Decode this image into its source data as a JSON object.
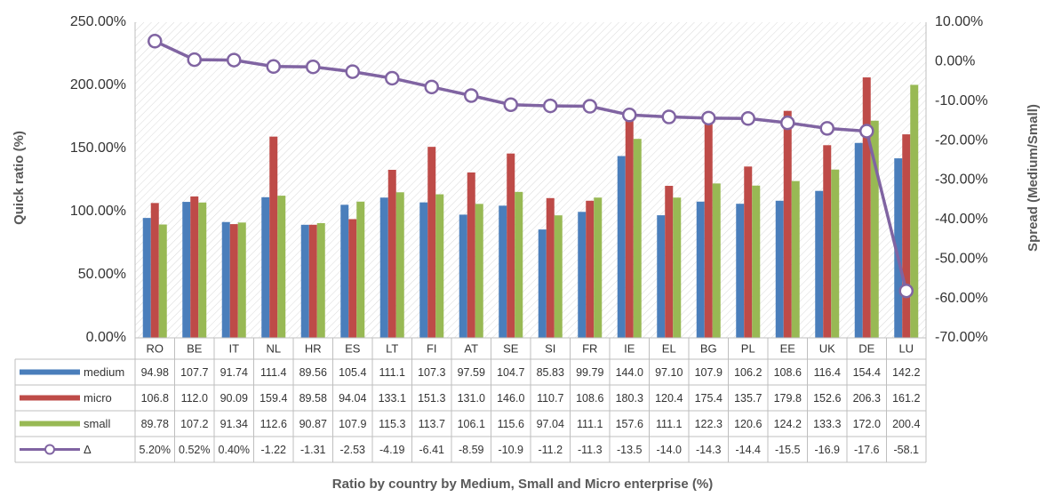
{
  "chart_data": {
    "type": "bar",
    "title": "Ratio by country by Medium, Small and Micro enterprise (%)",
    "y_label": "Quick ratio (%)",
    "y2_label": "Spread (Medium/Small)",
    "categories": [
      "RO",
      "BE",
      "IT",
      "NL",
      "HR",
      "ES",
      "LT",
      "FI",
      "AT",
      "SE",
      "SI",
      "FR",
      "IE",
      "EL",
      "BG",
      "PL",
      "EE",
      "UK",
      "DE",
      "LU"
    ],
    "series": [
      {
        "name": "medium",
        "color": "#4a7ebb",
        "values": [
          94.98,
          107.7,
          91.74,
          111.4,
          89.56,
          105.4,
          111.1,
          107.3,
          97.59,
          104.7,
          85.83,
          99.79,
          144.0,
          97.1,
          107.9,
          106.2,
          108.6,
          116.4,
          154.4,
          142.2
        ],
        "value_labels": [
          "94.98",
          "107.7",
          "91.74",
          "111.4",
          "89.56",
          "105.4",
          "111.1",
          "107.3",
          "97.59",
          "104.7",
          "85.83",
          "99.79",
          "144.0",
          "97.10",
          "107.9",
          "106.2",
          "108.6",
          "116.4",
          "154.4",
          "142.2"
        ]
      },
      {
        "name": "micro",
        "color": "#be4b48",
        "values": [
          106.8,
          112.0,
          90.09,
          159.4,
          89.58,
          94.04,
          133.1,
          151.3,
          131.0,
          146.0,
          110.7,
          108.6,
          180.3,
          120.4,
          175.4,
          135.7,
          179.8,
          152.6,
          206.3,
          161.2
        ],
        "value_labels": [
          "106.8",
          "112.0",
          "90.09",
          "159.4",
          "89.58",
          "94.04",
          "133.1",
          "151.3",
          "131.0",
          "146.0",
          "110.7",
          "108.6",
          "180.3",
          "120.4",
          "175.4",
          "135.7",
          "179.8",
          "152.6",
          "206.3",
          "161.2"
        ]
      },
      {
        "name": "small",
        "color": "#98b954",
        "values": [
          89.78,
          107.2,
          91.34,
          112.6,
          90.87,
          107.9,
          115.3,
          113.7,
          106.1,
          115.6,
          97.04,
          111.1,
          157.6,
          111.1,
          122.3,
          120.6,
          124.2,
          133.3,
          172.0,
          200.4
        ],
        "value_labels": [
          "89.78",
          "107.2",
          "91.34",
          "112.6",
          "90.87",
          "107.9",
          "115.3",
          "113.7",
          "106.1",
          "115.6",
          "97.04",
          "111.1",
          "157.6",
          "111.1",
          "122.3",
          "120.6",
          "124.2",
          "133.3",
          "172.0",
          "200.4"
        ]
      },
      {
        "name": "Δ",
        "color": "#8064a2",
        "type": "line",
        "axis": "y2",
        "values": [
          5.2,
          0.52,
          0.4,
          -1.22,
          -1.31,
          -2.53,
          -4.19,
          -6.41,
          -8.59,
          -10.9,
          -11.2,
          -11.3,
          -13.5,
          -14.0,
          -14.3,
          -14.4,
          -15.5,
          -16.9,
          -17.6,
          -58.1
        ],
        "value_labels": [
          "5.20%",
          "0.52%",
          "0.40%",
          "-1.22",
          "-1.31",
          "-2.53",
          "-4.19",
          "-6.41",
          "-8.59",
          "-10.9",
          "-11.2",
          "-11.3",
          "-13.5",
          "-14.0",
          "-14.3",
          "-14.4",
          "-15.5",
          "-16.9",
          "-17.6",
          "-58.1"
        ]
      }
    ],
    "ylim": [
      0,
      250
    ],
    "yticks": [
      {
        "value": 0,
        "label": "0.00%"
      },
      {
        "value": 50,
        "label": "50.00%"
      },
      {
        "value": 100,
        "label": "100.00%"
      },
      {
        "value": 150,
        "label": "150.00%"
      },
      {
        "value": 200,
        "label": "200.00%"
      },
      {
        "value": 250,
        "label": "250.00%"
      }
    ],
    "y2lim": [
      -70,
      10
    ],
    "y2ticks": [
      {
        "value": 10,
        "label": "10.00%"
      },
      {
        "value": 0,
        "label": "0.00%"
      },
      {
        "value": -10,
        "label": "-10.00%"
      },
      {
        "value": -20,
        "label": "-20.00%"
      },
      {
        "value": -30,
        "label": "-30.00%"
      },
      {
        "value": -40,
        "label": "-40.00%"
      },
      {
        "value": -50,
        "label": "-50.00%"
      },
      {
        "value": -60,
        "label": "-60.00%"
      },
      {
        "value": -70,
        "label": "-70.00%"
      }
    ],
    "grid": false
  }
}
